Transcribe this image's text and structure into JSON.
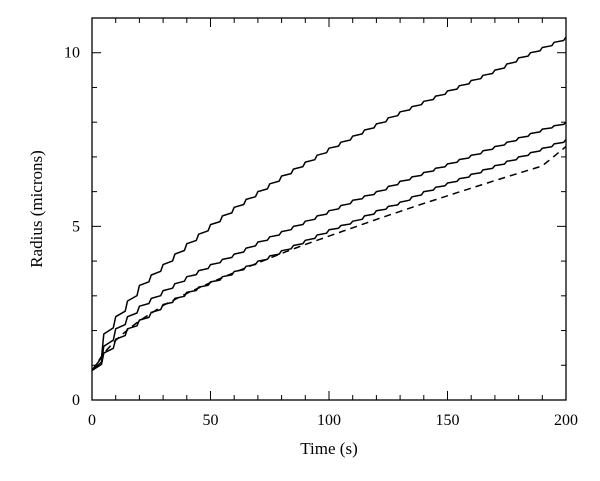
{
  "chart_data": {
    "type": "line",
    "xlabel": "Time (s)",
    "ylabel": "Radius (microns)",
    "xlim": [
      0,
      200
    ],
    "ylim": [
      0,
      11
    ],
    "x_ticks": [
      0,
      50,
      100,
      150,
      200
    ],
    "y_ticks": [
      0,
      5,
      10
    ],
    "x_tick_labels": [
      "0",
      "50",
      "100",
      "150",
      "200"
    ],
    "y_tick_labels": [
      "0",
      "5",
      "10"
    ],
    "grid": false,
    "legend": "none",
    "line_color": "#000000",
    "series": [
      {
        "style": "solid",
        "step_period": 5,
        "x": [
          0,
          5,
          10,
          15,
          20,
          30,
          40,
          50,
          60,
          70,
          80,
          90,
          100,
          110,
          120,
          130,
          140,
          150,
          160,
          170,
          180,
          190,
          200
        ],
        "y": [
          0.85,
          1.9,
          2.4,
          2.85,
          3.3,
          3.9,
          4.5,
          5.05,
          5.55,
          6.0,
          6.45,
          6.85,
          7.25,
          7.6,
          7.95,
          8.3,
          8.6,
          8.9,
          9.2,
          9.5,
          9.85,
          10.15,
          10.45
        ]
      },
      {
        "style": "solid",
        "step_period": 5,
        "x": [
          0,
          5,
          10,
          15,
          20,
          30,
          40,
          50,
          60,
          70,
          80,
          90,
          100,
          110,
          120,
          130,
          140,
          150,
          160,
          170,
          180,
          190,
          200
        ],
        "y": [
          0.85,
          1.55,
          2.05,
          2.4,
          2.7,
          3.15,
          3.55,
          3.9,
          4.2,
          4.55,
          4.85,
          5.15,
          5.45,
          5.75,
          6.0,
          6.3,
          6.55,
          6.8,
          7.05,
          7.3,
          7.55,
          7.8,
          8.0
        ]
      },
      {
        "style": "solid",
        "step_period": 5,
        "x": [
          0,
          5,
          10,
          15,
          20,
          30,
          40,
          50,
          60,
          70,
          80,
          90,
          100,
          110,
          120,
          130,
          140,
          150,
          160,
          170,
          180,
          190,
          200
        ],
        "y": [
          0.85,
          1.35,
          1.75,
          2.05,
          2.3,
          2.75,
          3.1,
          3.4,
          3.7,
          4.0,
          4.3,
          4.6,
          4.9,
          5.15,
          5.45,
          5.7,
          6.0,
          6.25,
          6.5,
          6.75,
          7.0,
          7.25,
          7.5
        ]
      },
      {
        "style": "dashed",
        "step_period": 0,
        "x": [
          0,
          5,
          10,
          15,
          20,
          30,
          40,
          50,
          60,
          70,
          80,
          90,
          100,
          110,
          120,
          130,
          140,
          150,
          160,
          170,
          180,
          190,
          200
        ],
        "y": [
          0.85,
          1.35,
          1.72,
          2.02,
          2.28,
          2.72,
          3.07,
          3.38,
          3.67,
          3.95,
          4.22,
          4.48,
          4.72,
          4.96,
          5.2,
          5.43,
          5.66,
          5.88,
          6.1,
          6.32,
          6.53,
          6.74,
          7.3
        ]
      }
    ]
  }
}
